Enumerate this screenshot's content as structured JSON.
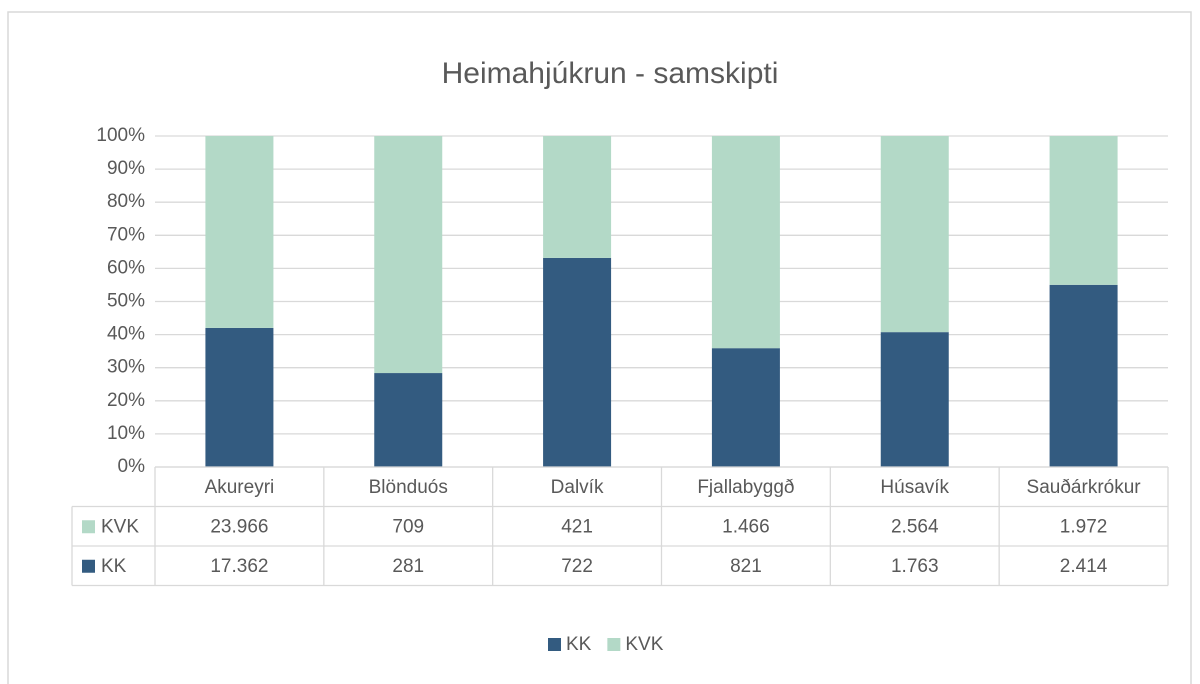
{
  "chart_data": {
    "type": "bar",
    "stacked_percent": true,
    "title": "Heimahjúkrun - samskipti",
    "categories": [
      "Akureyri",
      "Blönduós",
      "Dalvík",
      "Fjallabyggð",
      "Húsavík",
      "Sauðárkrókur"
    ],
    "series": [
      {
        "name": "KK",
        "color": "#335b80",
        "values": [
          17362,
          281,
          722,
          821,
          1763,
          2414
        ],
        "value_labels": [
          "17.362",
          "281",
          "722",
          "821",
          "1.763",
          "2.414"
        ]
      },
      {
        "name": "KVK",
        "color": "#b3d9c7",
        "values": [
          23966,
          709,
          421,
          1466,
          2564,
          1972
        ],
        "value_labels": [
          "23.966",
          "709",
          "421",
          "1.466",
          "2.564",
          "1.972"
        ]
      }
    ],
    "ylim": [
      0,
      100
    ],
    "yticks": [
      {
        "value": 0,
        "label": "0%"
      },
      {
        "value": 10,
        "label": "10%"
      },
      {
        "value": 20,
        "label": "20%"
      },
      {
        "value": 30,
        "label": "30%"
      },
      {
        "value": 40,
        "label": "40%"
      },
      {
        "value": 50,
        "label": "50%"
      },
      {
        "value": 60,
        "label": "60%"
      },
      {
        "value": 70,
        "label": "70%"
      },
      {
        "value": 80,
        "label": "80%"
      },
      {
        "value": 90,
        "label": "90%"
      },
      {
        "value": 100,
        "label": "100%"
      }
    ],
    "grid": true,
    "data_table": true,
    "legend": "bottom"
  }
}
